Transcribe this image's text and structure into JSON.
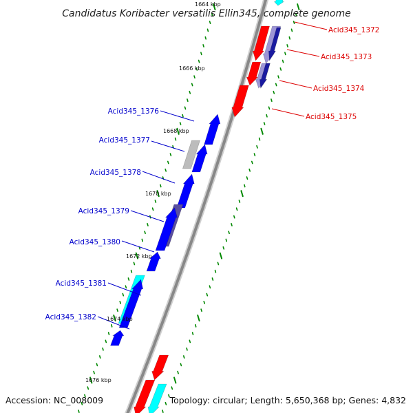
{
  "header": {
    "title": "Candidatus Koribacter versatilis Ellin345, complete genome"
  },
  "footer": {
    "accession": "Accession: NC_008009",
    "topology": "Topology: circular; Length: 5,650,368 bp; Genes: 4,832"
  },
  "colors": {
    "backbone": "#888888",
    "forward_label": "#0000cc",
    "reverse_label": "#dd0000",
    "tick": "#008800",
    "red": "#ff0000",
    "blue": "#0000ff",
    "cyan": "#00ffff",
    "navy": "#1a1aa0",
    "purple": "#5a4fa0",
    "lavender": "#9d95d6",
    "grey": "#bcbcbc"
  },
  "scale_labels": [
    "1664 kbp",
    "1666 kbp",
    "1668 kbp",
    "1670 kbp",
    "1672 kbp",
    "1674 kbp",
    "1676 kbp"
  ],
  "genes_left": [
    "Acid345_1376",
    "Acid345_1377",
    "Acid345_1378",
    "Acid345_1379",
    "Acid345_1380",
    "Acid345_1381",
    "Acid345_1382"
  ],
  "genes_right": [
    "Acid345_1372",
    "Acid345_1373",
    "Acid345_1374",
    "Acid345_1375"
  ]
}
